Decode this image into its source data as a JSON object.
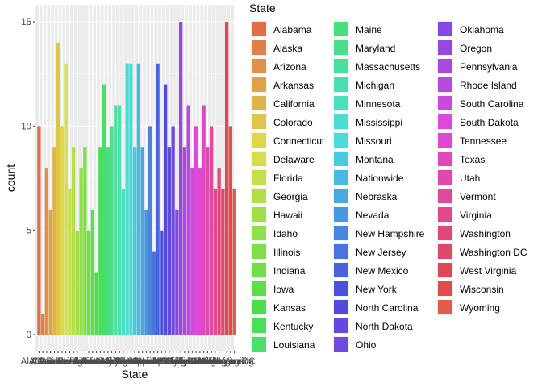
{
  "chart_data": {
    "type": "bar",
    "xlabel": "State",
    "ylabel": "count",
    "ylim": [
      0,
      15.5
    ],
    "y_ticks": [
      0,
      5,
      10,
      15
    ],
    "grid": true,
    "legend_title": "State",
    "legend_position": "right",
    "categories": [
      "Alabama",
      "Alaska",
      "Arizona",
      "Arkansas",
      "California",
      "Colorado",
      "Connecticut",
      "Delaware",
      "Florida",
      "Georgia",
      "Hawaii",
      "Idaho",
      "Illinois",
      "Indiana",
      "Iowa",
      "Kansas",
      "Kentucky",
      "Louisiana",
      "Maine",
      "Maryland",
      "Massachusetts",
      "Michigan",
      "Minnesota",
      "Mississippi",
      "Missouri",
      "Montana",
      "Nationwide",
      "Nebraska",
      "Nevada",
      "New Hampshire",
      "New Jersey",
      "New Mexico",
      "New York",
      "North Carolina",
      "North Dakota",
      "Ohio",
      "Oklahoma",
      "Oregon",
      "Pennsylvania",
      "Rhode Island",
      "South Carolina",
      "South Dakota",
      "Tennessee",
      "Texas",
      "Utah",
      "Vermont",
      "Virginia",
      "Washington",
      "Washington DC",
      "West Virginia",
      "Wisconsin",
      "Wyoming"
    ],
    "values": [
      10,
      1,
      8,
      6,
      9,
      14,
      10,
      13,
      7,
      9,
      5,
      8,
      9,
      5,
      6,
      3,
      9,
      12,
      9,
      10,
      11,
      11,
      7,
      13,
      13,
      9,
      13,
      9,
      6,
      10,
      4,
      13,
      5,
      12,
      9,
      10,
      6,
      15,
      9,
      11,
      8,
      10,
      8,
      11,
      9,
      10,
      7,
      8,
      7,
      15,
      10,
      7
    ],
    "x_tick_labels_visible": [
      "Ala",
      "ing",
      "Wyoming"
    ]
  }
}
